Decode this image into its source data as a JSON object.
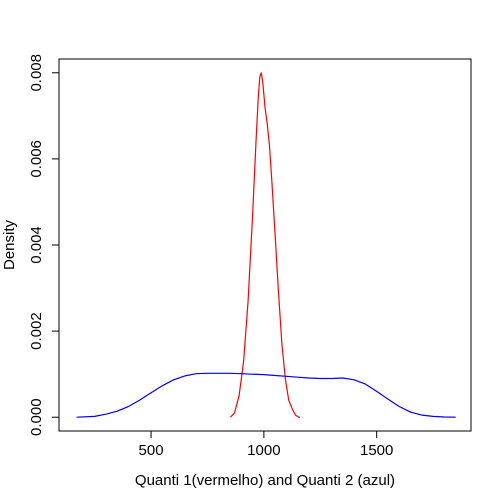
{
  "chart_data": {
    "type": "line",
    "title": "",
    "xlabel": "Quanti 1(vermelho) and Quanti 2 (azul)",
    "ylabel": "Density",
    "xlim": [
      92,
      1918
    ],
    "ylim": [
      -0.00032,
      0.00832
    ],
    "x_ticks": [
      500,
      1000,
      1500
    ],
    "x_tick_labels": [
      "500",
      "1000",
      "1500"
    ],
    "y_ticks": [
      0.0,
      0.002,
      0.004,
      0.006,
      0.008
    ],
    "y_tick_labels": [
      "0.000",
      "0.002",
      "0.004",
      "0.006",
      "0.008"
    ],
    "grid": false,
    "legend": "none",
    "series": [
      {
        "color": "#ff0000",
        "x": [
          852,
          870,
          890,
          910,
          930,
          950,
          965,
          975,
          982,
          988,
          995,
          1005,
          1015,
          1025,
          1035,
          1050,
          1065,
          1080,
          1095,
          1110,
          1125,
          1140,
          1155,
          1160
        ],
        "y": [
          0.0,
          0.0001,
          0.0005,
          0.0013,
          0.0027,
          0.0047,
          0.0064,
          0.0074,
          0.0079,
          0.008,
          0.0078,
          0.0072,
          0.0068,
          0.0063,
          0.0055,
          0.0042,
          0.0029,
          0.0017,
          0.0009,
          0.0004,
          0.0002,
          5e-05,
          0.0,
          0.0
        ]
      },
      {
        "color": "#0000ff",
        "x": [
          170,
          250,
          300,
          350,
          400,
          450,
          500,
          550,
          600,
          650,
          700,
          750,
          800,
          850,
          900,
          950,
          1000,
          1050,
          1100,
          1150,
          1200,
          1250,
          1300,
          1350,
          1400,
          1450,
          1500,
          1550,
          1600,
          1650,
          1700,
          1750,
          1800,
          1850
        ],
        "y": [
          0.0,
          2e-05,
          7e-05,
          0.00014,
          0.00025,
          0.0004,
          0.00057,
          0.00073,
          0.00087,
          0.00096,
          0.00101,
          0.00102,
          0.00102,
          0.00102,
          0.00101,
          0.001,
          0.00099,
          0.00097,
          0.00095,
          0.00093,
          0.00091,
          0.0009,
          0.0009,
          0.00091,
          0.00087,
          0.00077,
          0.0006,
          0.00042,
          0.00025,
          0.00012,
          5e-05,
          2e-05,
          5e-06,
          0.0
        ]
      }
    ]
  }
}
